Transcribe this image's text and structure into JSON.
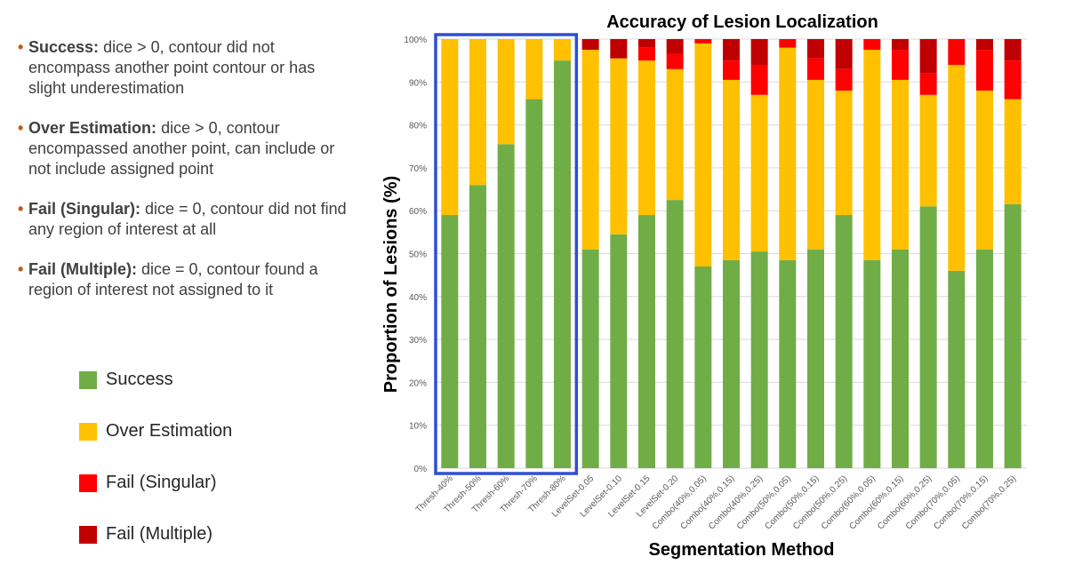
{
  "bullets": [
    {
      "term": "Success:",
      "desc": "dice > 0, contour did not encompass another point contour or has slight underestimation"
    },
    {
      "term": "Over Estimation:",
      "desc": "dice > 0, contour encompassed another point, can include or not include assigned point"
    },
    {
      "term": "Fail (Singular):",
      "desc": "dice = 0, contour did not find any region of interest at all"
    },
    {
      "term": "Fail (Multiple):",
      "desc": "dice = 0, contour found a region of interest not assigned to it"
    }
  ],
  "bullet_marker": "•",
  "legend": [
    {
      "label": "Success",
      "color": "#70ad47"
    },
    {
      "label": "Over Estimation",
      "color": "#ffc000"
    },
    {
      "label": "Fail (Singular)",
      "color": "#ff0000"
    },
    {
      "label": "Fail (Multiple)",
      "color": "#c00000"
    }
  ],
  "chart_data": {
    "type": "bar",
    "stacked": true,
    "title": "Accuracy of Lesion Localization",
    "xlabel": "Segmentation Method",
    "ylabel": "Proportion of Lesions (%)",
    "ylim": [
      0,
      100
    ],
    "yticks": [
      "0%",
      "10%",
      "20%",
      "30%",
      "40%",
      "50%",
      "60%",
      "70%",
      "80%",
      "90%",
      "100%"
    ],
    "grid": true,
    "highlight_box": {
      "from_category": "Thresh-40%",
      "to_category": "Thresh-80%",
      "color": "#2f4fd1"
    },
    "categories": [
      "Thresh-40%",
      "Thresh-50%",
      "Thresh-60%",
      "Thresh-70%",
      "Thresh-80%",
      "LevelSet-0.05",
      "LevelSet-0.10",
      "LevelSet-0.15",
      "LevelSet-0.20",
      "Combo(40%,0.05)",
      "Combo(40%,0.15)",
      "Combo(40%,0.25)",
      "Combo(50%,0.05)",
      "Combo(50%,0.15)",
      "Combo(50%,0.25)",
      "Combo(60%,0.05)",
      "Combo(60%,0.15)",
      "Combo(60%,0.25)",
      "Combo(70%,0.05)",
      "Combo(70%,0.15)",
      "Combo(70%,0.25)"
    ],
    "series": [
      {
        "name": "Success",
        "color": "#70ad47",
        "values": [
          59,
          66,
          75.5,
          86,
          95,
          51,
          54.5,
          59,
          62.5,
          47,
          48.5,
          50.5,
          48.5,
          51,
          59,
          48.5,
          51,
          61,
          46,
          51,
          61.5
        ]
      },
      {
        "name": "Over Estimation",
        "color": "#ffc000",
        "values": [
          41,
          34,
          24.5,
          14,
          5,
          46.5,
          41,
          36,
          30.5,
          52,
          42,
          36.5,
          49.5,
          39.5,
          29,
          49,
          39.5,
          26,
          48,
          37,
          24.5
        ]
      },
      {
        "name": "Fail (Singular)",
        "color": "#ff0000",
        "values": [
          0,
          0,
          0,
          0,
          0,
          0,
          0,
          3,
          3.5,
          1,
          4.5,
          7,
          2,
          5,
          5,
          2.5,
          7,
          5,
          6,
          9.5,
          9
        ]
      },
      {
        "name": "Fail (Multiple)",
        "color": "#c00000",
        "values": [
          0,
          0,
          0,
          0,
          0,
          2.5,
          4.5,
          2,
          3.5,
          0,
          5,
          6,
          0,
          4.5,
          7,
          0,
          2.5,
          8,
          0,
          2.5,
          5
        ]
      }
    ]
  }
}
